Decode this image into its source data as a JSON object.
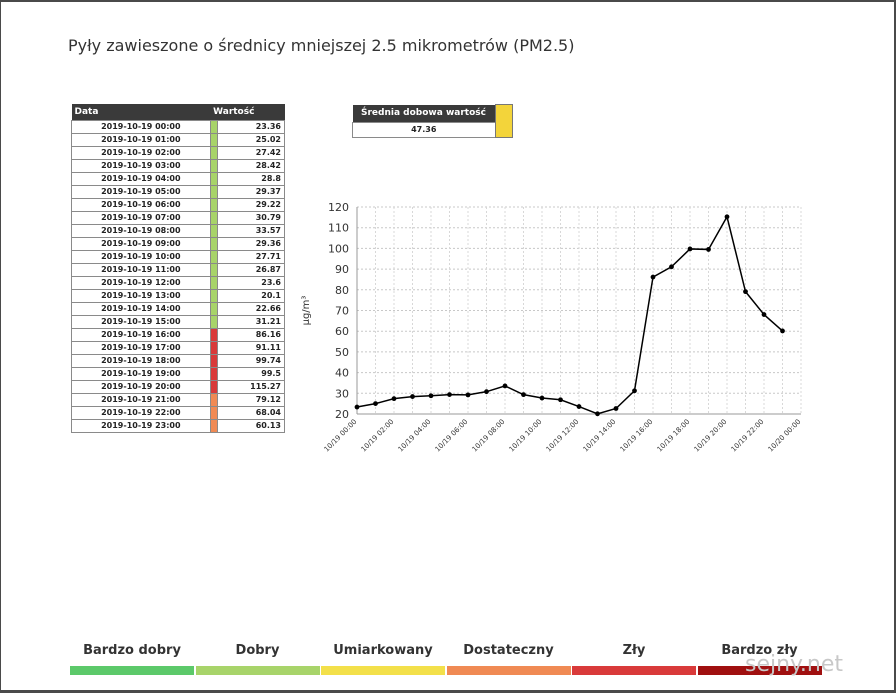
{
  "title": "Pyły zawieszone o średnicy mniejszej 2.5 mikrometrów (PM2.5)",
  "table": {
    "header_date": "Data",
    "header_value": "Wartość",
    "rows": [
      {
        "date": "2019-10-19 00:00",
        "value": "23.36",
        "color": "#a8d46a"
      },
      {
        "date": "2019-10-19 01:00",
        "value": "25.02",
        "color": "#a8d46a"
      },
      {
        "date": "2019-10-19 02:00",
        "value": "27.42",
        "color": "#a8d46a"
      },
      {
        "date": "2019-10-19 03:00",
        "value": "28.42",
        "color": "#a8d46a"
      },
      {
        "date": "2019-10-19 04:00",
        "value": "28.8",
        "color": "#a8d46a"
      },
      {
        "date": "2019-10-19 05:00",
        "value": "29.37",
        "color": "#a8d46a"
      },
      {
        "date": "2019-10-19 06:00",
        "value": "29.22",
        "color": "#a8d46a"
      },
      {
        "date": "2019-10-19 07:00",
        "value": "30.79",
        "color": "#a8d46a"
      },
      {
        "date": "2019-10-19 08:00",
        "value": "33.57",
        "color": "#a8d46a"
      },
      {
        "date": "2019-10-19 09:00",
        "value": "29.36",
        "color": "#a8d46a"
      },
      {
        "date": "2019-10-19 10:00",
        "value": "27.71",
        "color": "#a8d46a"
      },
      {
        "date": "2019-10-19 11:00",
        "value": "26.87",
        "color": "#a8d46a"
      },
      {
        "date": "2019-10-19 12:00",
        "value": "23.6",
        "color": "#a8d46a"
      },
      {
        "date": "2019-10-19 13:00",
        "value": "20.1",
        "color": "#a8d46a"
      },
      {
        "date": "2019-10-19 14:00",
        "value": "22.66",
        "color": "#a8d46a"
      },
      {
        "date": "2019-10-19 15:00",
        "value": "31.21",
        "color": "#a8d46a"
      },
      {
        "date": "2019-10-19 16:00",
        "value": "86.16",
        "color": "#d93a3a"
      },
      {
        "date": "2019-10-19 17:00",
        "value": "91.11",
        "color": "#d93a3a"
      },
      {
        "date": "2019-10-19 18:00",
        "value": "99.74",
        "color": "#d93a3a"
      },
      {
        "date": "2019-10-19 19:00",
        "value": "99.5",
        "color": "#d93a3a"
      },
      {
        "date": "2019-10-19 20:00",
        "value": "115.27",
        "color": "#d93a3a"
      },
      {
        "date": "2019-10-19 21:00",
        "value": "79.12",
        "color": "#f08a54"
      },
      {
        "date": "2019-10-19 22:00",
        "value": "68.04",
        "color": "#f08a54"
      },
      {
        "date": "2019-10-19 23:00",
        "value": "60.13",
        "color": "#f08a54"
      }
    ]
  },
  "average": {
    "label": "Średnia dobowa wartość",
    "value": "47.36",
    "color": "#f3d43a"
  },
  "chart_data": {
    "type": "line",
    "ylabel": "µg/m³",
    "ylim": [
      20,
      120
    ],
    "yticks": [
      20,
      30,
      40,
      50,
      60,
      70,
      80,
      90,
      100,
      110,
      120
    ],
    "grid": true,
    "x_tick_labels": [
      "10/19 00:00",
      "10/19 02:00",
      "10/19 04:00",
      "10/19 06:00",
      "10/19 08:00",
      "10/19 10:00",
      "10/19 12:00",
      "10/19 14:00",
      "10/19 16:00",
      "10/19 18:00",
      "10/19 20:00",
      "10/19 22:00",
      "10/20 00:00"
    ],
    "x_tick_hours": [
      0,
      2,
      4,
      6,
      8,
      10,
      12,
      14,
      16,
      18,
      20,
      22,
      24
    ],
    "x_hours": [
      0,
      1,
      2,
      3,
      4,
      5,
      6,
      7,
      8,
      9,
      10,
      11,
      12,
      13,
      14,
      15,
      16,
      17,
      18,
      19,
      20,
      21,
      22,
      23
    ],
    "values": [
      23.36,
      25.02,
      27.42,
      28.42,
      28.8,
      29.37,
      29.22,
      30.79,
      33.57,
      29.36,
      27.71,
      26.87,
      23.6,
      20.1,
      22.66,
      31.21,
      86.16,
      91.11,
      99.74,
      99.5,
      115.27,
      79.12,
      68.04,
      60.13
    ]
  },
  "legend": [
    {
      "label": "Bardzo dobry",
      "color": "#5cc96a"
    },
    {
      "label": "Dobry",
      "color": "#a8d46a"
    },
    {
      "label": "Umiarkowany",
      "color": "#f3e04a"
    },
    {
      "label": "Dostateczny",
      "color": "#f08a54"
    },
    {
      "label": "Zły",
      "color": "#d93a3a"
    },
    {
      "label": "Bardzo zły",
      "color": "#a01010"
    }
  ],
  "watermark": "sejny.net"
}
